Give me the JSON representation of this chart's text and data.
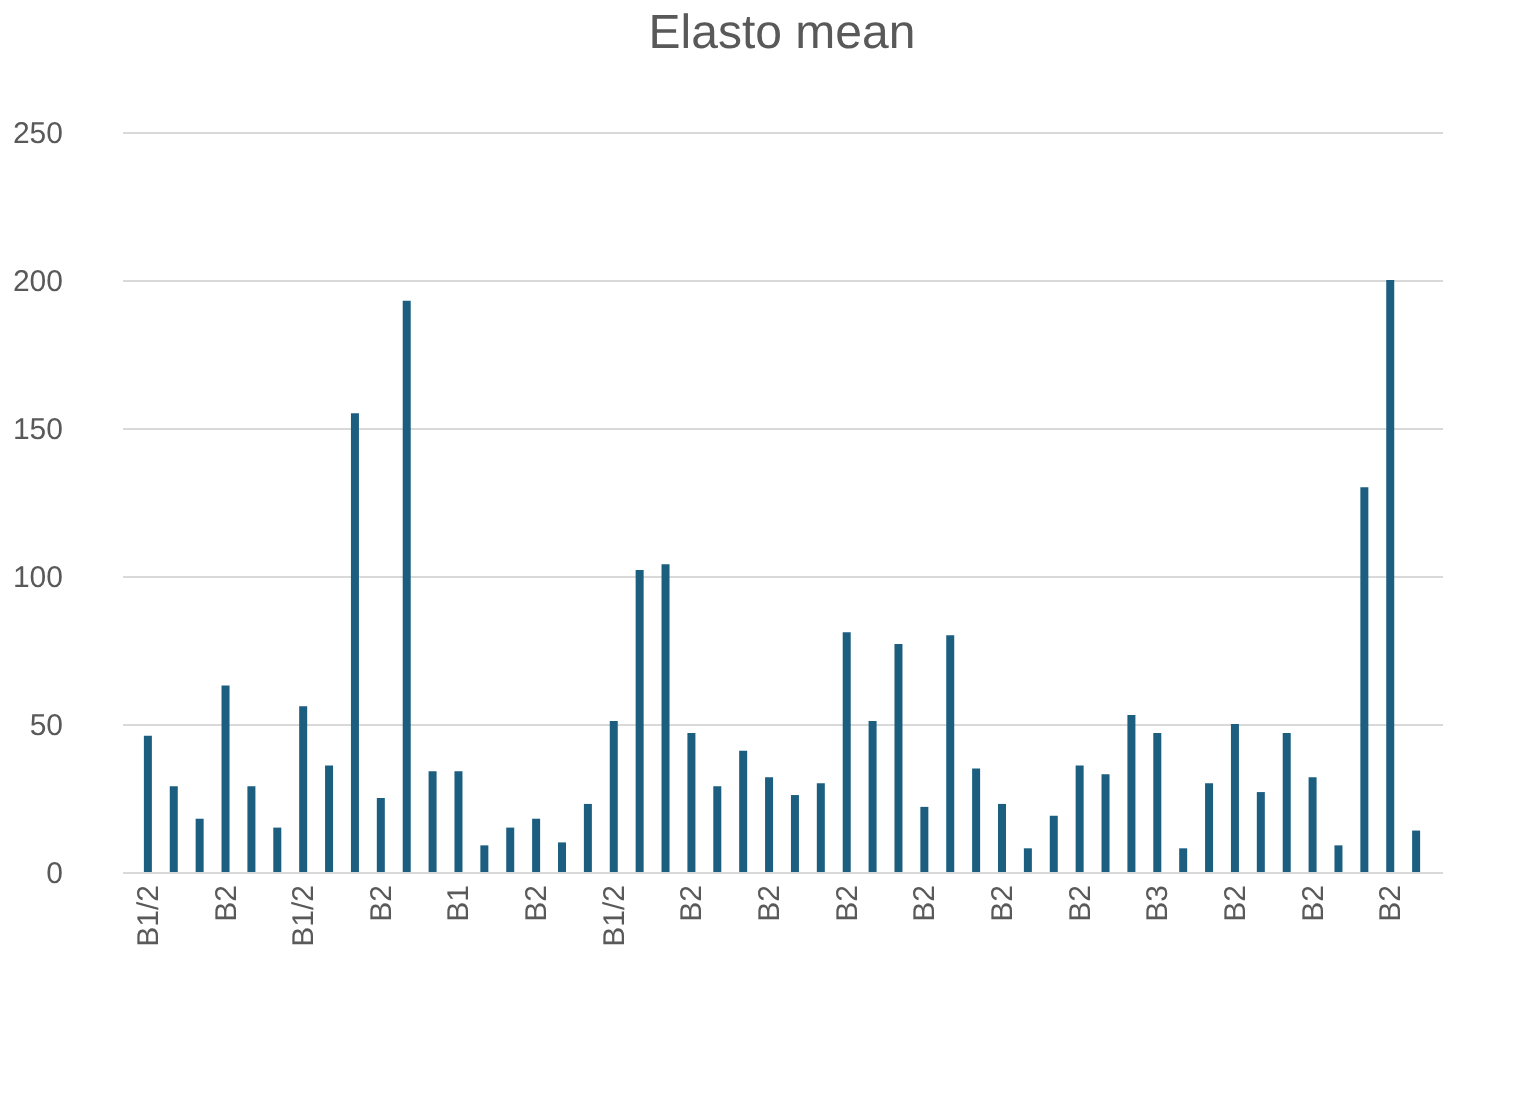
{
  "chart_data": {
    "type": "bar",
    "title": "Elasto mean",
    "categories": [
      "B1/2",
      null,
      null,
      "B2",
      null,
      null,
      "B1/2",
      null,
      null,
      "B2",
      null,
      null,
      "B1",
      null,
      null,
      "B2",
      null,
      null,
      "B1/2",
      null,
      null,
      "B2",
      null,
      null,
      "B2",
      null,
      null,
      "B2",
      null,
      null,
      "B2",
      null,
      null,
      "B2",
      null,
      null,
      "B2",
      null,
      null,
      "B3",
      null,
      null,
      "B2",
      null,
      null,
      "B2",
      null,
      null,
      "B2",
      null
    ],
    "values": [
      46,
      29,
      18,
      63,
      29,
      15,
      56,
      36,
      155,
      25,
      193,
      34,
      34,
      9,
      15,
      18,
      10,
      23,
      51,
      102,
      104,
      47,
      29,
      41,
      32,
      26,
      30,
      81,
      51,
      77,
      22,
      80,
      35,
      23,
      8,
      19,
      36,
      33,
      53,
      47,
      8,
      30,
      50,
      27,
      47,
      32,
      9,
      130,
      200,
      14
    ],
    "color": "#1b5e80",
    "ylim": [
      0,
      250
    ],
    "yticks": [
      0,
      50,
      100,
      150,
      200,
      250
    ],
    "grid": "y"
  }
}
